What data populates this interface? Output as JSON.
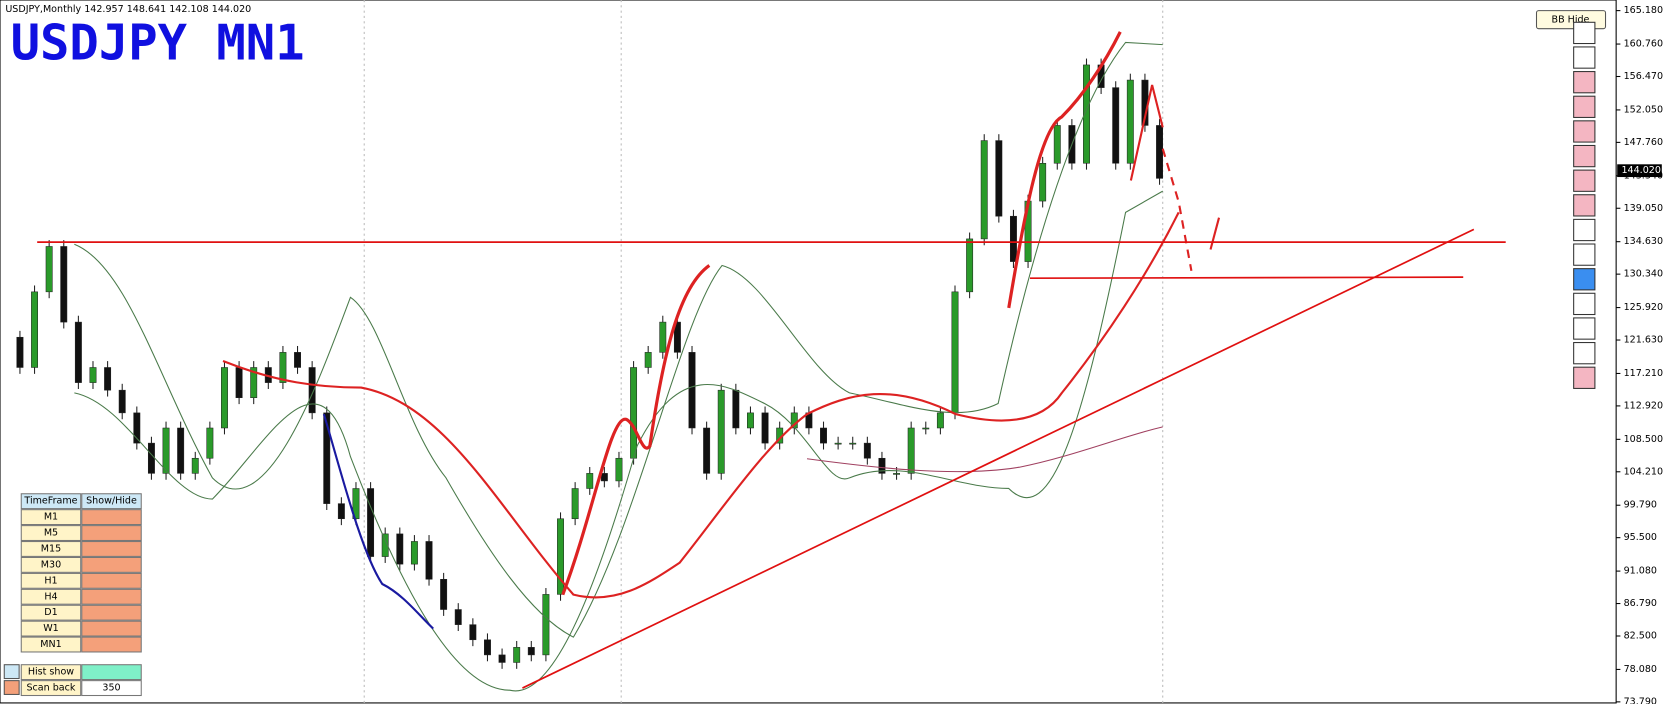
{
  "header": {
    "info": "USDJPY,Monthly  142.957 148.641 142.108 144.020",
    "title": "USDJPY MN1",
    "button": "BB Hide",
    "current_price": "144.020"
  },
  "price_axis": {
    "ylim": [
      73.79,
      165.18
    ],
    "ticks": [
      {
        "value": 165.18,
        "label": "165.180"
      },
      {
        "value": 160.76,
        "label": "160.760"
      },
      {
        "value": 156.47,
        "label": "156.470"
      },
      {
        "value": 152.05,
        "label": "152.050"
      },
      {
        "value": 147.76,
        "label": "147.760"
      },
      {
        "value": 143.34,
        "label": "143.340"
      },
      {
        "value": 139.05,
        "label": "139.050"
      },
      {
        "value": 134.63,
        "label": "134.630"
      },
      {
        "value": 130.34,
        "label": "130.340"
      },
      {
        "value": 125.92,
        "label": "125.920"
      },
      {
        "value": 121.63,
        "label": "121.630"
      },
      {
        "value": 117.21,
        "label": "117.210"
      },
      {
        "value": 112.92,
        "label": "112.920"
      },
      {
        "value": 108.5,
        "label": "108.500"
      },
      {
        "value": 104.21,
        "label": "104.210"
      },
      {
        "value": 99.79,
        "label": "99.790"
      },
      {
        "value": 95.5,
        "label": "95.500"
      },
      {
        "value": 91.08,
        "label": "91.080"
      },
      {
        "value": 86.79,
        "label": "86.790"
      },
      {
        "value": 82.5,
        "label": "82.500"
      },
      {
        "value": 78.08,
        "label": "78.080"
      },
      {
        "value": 73.79,
        "label": "73.790"
      }
    ]
  },
  "price_series": {
    "closes": [
      122,
      118,
      128,
      134,
      124,
      116,
      118,
      115,
      112,
      108,
      104,
      110,
      104,
      106,
      110,
      118,
      114,
      118,
      116,
      120,
      118,
      112,
      100,
      98,
      102,
      93,
      96,
      92,
      95,
      90,
      86,
      84,
      82,
      80,
      79,
      81,
      80,
      88,
      98,
      102,
      104,
      103,
      106,
      118,
      120,
      124,
      120,
      110,
      104,
      115,
      110,
      112,
      108,
      110,
      112,
      110,
      108,
      108,
      108,
      106,
      104,
      104,
      110,
      110,
      112,
      128,
      135,
      148,
      138,
      132,
      140,
      145,
      150,
      145,
      158,
      155,
      145,
      156,
      150,
      143
    ]
  },
  "table": {
    "header": [
      "TimeFrame",
      "Show/Hide"
    ],
    "rows": [
      "M1",
      "M5",
      "M15",
      "M30",
      "H1",
      "H4",
      "D1",
      "W1",
      "MN1"
    ],
    "hist_label": "Hist show",
    "scan_label": "Scan back",
    "scan_value": "350"
  }
}
